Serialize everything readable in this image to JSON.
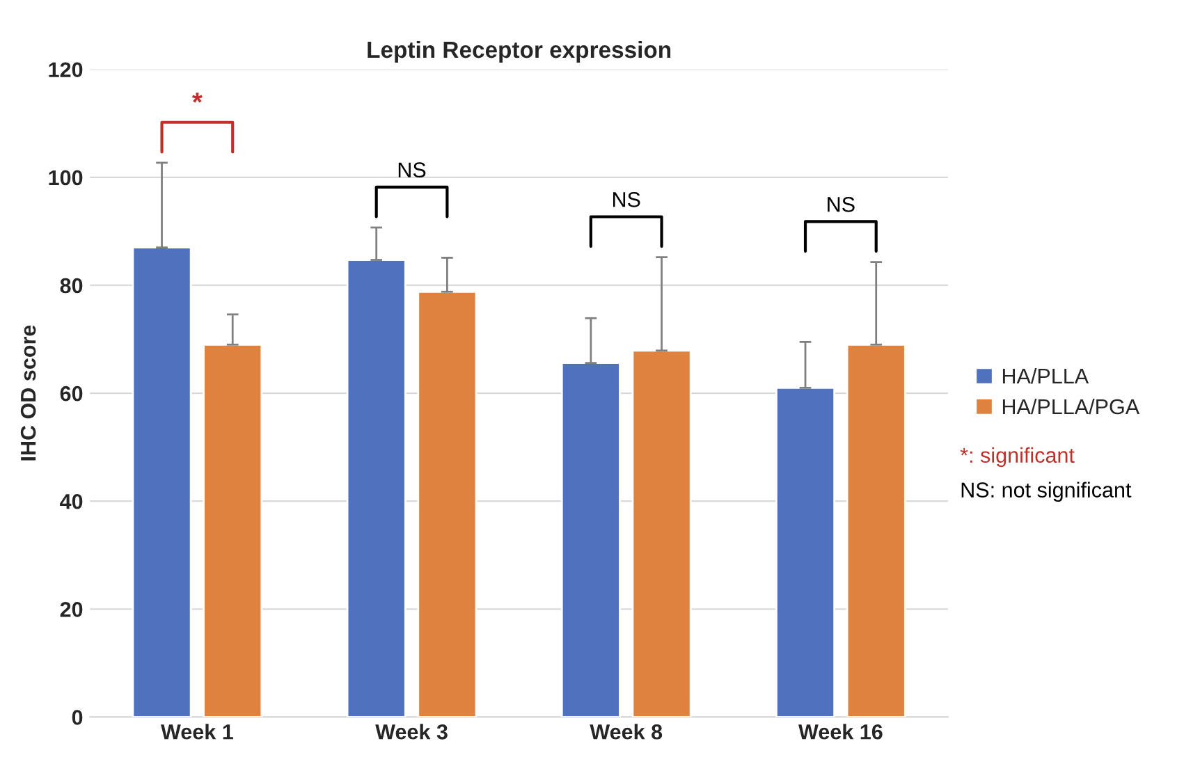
{
  "chart_data": {
    "type": "bar",
    "title": "Leptin Receptor expression",
    "ylabel": "IHC OD score",
    "categories": [
      "Week 1",
      "Week 3",
      "Week 8",
      "Week 16"
    ],
    "series": [
      {
        "name": "HA/PLLA",
        "color": "#4f71be",
        "values": [
          87,
          84.7,
          65.6,
          61
        ],
        "errors": [
          [
            87,
            102.7
          ],
          [
            84.7,
            90.7
          ],
          [
            65.6,
            73.9
          ],
          [
            61,
            69.5
          ]
        ]
      },
      {
        "name": "HA/PLLA/PGA",
        "color": "#e0823f",
        "values": [
          69,
          78.8,
          67.9,
          69
        ],
        "errors": [
          [
            69,
            74.6
          ],
          [
            78.8,
            85.1
          ],
          [
            67.9,
            85.2
          ],
          [
            69,
            84.3
          ]
        ]
      }
    ],
    "annotations": [
      "*",
      "NS",
      "NS",
      "NS",
      "*: significant",
      "NS: not significant"
    ],
    "ylim": [
      0,
      120
    ],
    "yticks": [
      0,
      20,
      40,
      60,
      80,
      100,
      120
    ],
    "grid": "y",
    "legend": "right"
  }
}
